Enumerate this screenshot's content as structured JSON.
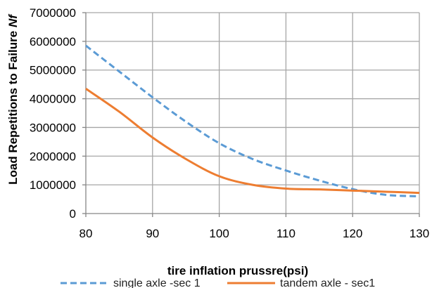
{
  "chart_data": {
    "type": "line",
    "xlabel": "tire inflation prussre(psi)",
    "ylabel": "Load Repetitions to Failure ",
    "ylabel_symbol": "Nf",
    "xlim": [
      80,
      130
    ],
    "ylim": [
      0,
      7000000
    ],
    "x_ticks": [
      80,
      90,
      100,
      110,
      120,
      130
    ],
    "y_ticks": [
      0,
      1000000,
      2000000,
      3000000,
      4000000,
      5000000,
      6000000,
      7000000
    ],
    "x_tick_labels": [
      "80",
      "90",
      "100",
      "110",
      "120",
      "130"
    ],
    "y_tick_labels": [
      "0",
      "1000000",
      "2000000",
      "3000000",
      "4000000",
      "5000000",
      "6000000",
      "7000000"
    ],
    "grid": true,
    "legend_position": "bottom",
    "series": [
      {
        "name": "single axle -sec 1",
        "color": "#5b9bd5",
        "style": "dashed",
        "x": [
          80,
          85,
          90,
          95,
          100,
          105,
          110,
          115,
          120,
          125,
          130
        ],
        "y": [
          5850000,
          4950000,
          4050000,
          3200000,
          2450000,
          1900000,
          1500000,
          1150000,
          850000,
          650000,
          600000
        ]
      },
      {
        "name": "tandem axle - sec1",
        "color": "#ed7d31",
        "style": "solid",
        "x": [
          80,
          85,
          90,
          95,
          100,
          105,
          110,
          115,
          120,
          125,
          130
        ],
        "y": [
          4350000,
          3550000,
          2650000,
          1900000,
          1300000,
          1000000,
          870000,
          840000,
          800000,
          760000,
          720000
        ]
      }
    ]
  }
}
